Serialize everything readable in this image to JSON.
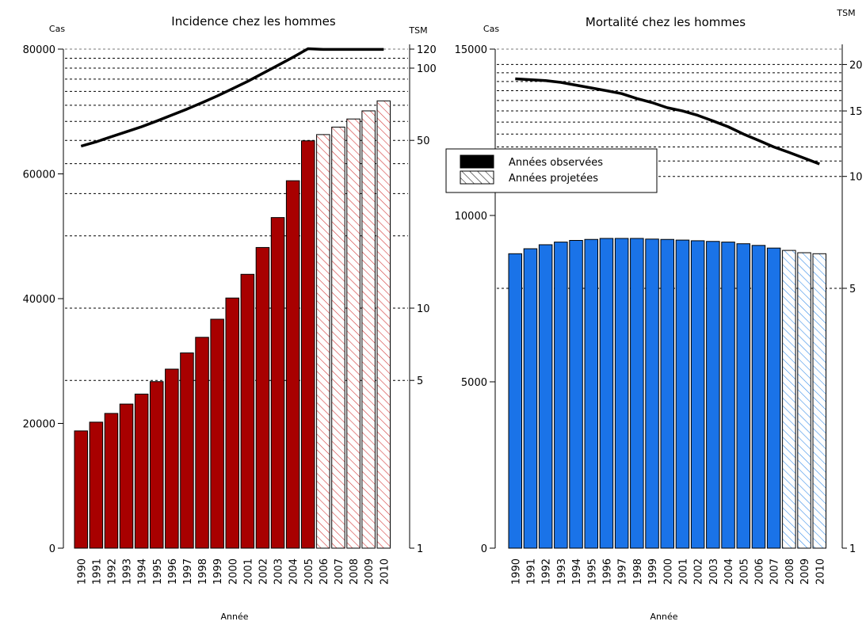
{
  "chart_data": [
    {
      "type": "bar",
      "title": "Incidence chez les hommes",
      "xlabel": "Année",
      "ylabel": "Cas",
      "y2label": "TSM",
      "ylim": [
        0,
        80000
      ],
      "yticks": [
        "0",
        "20000",
        "40000",
        "60000",
        "80000"
      ],
      "yticks_values": [
        0,
        20000,
        40000,
        60000,
        80000
      ],
      "y2_scale": "log",
      "y2lim": [
        1,
        120
      ],
      "y2ticks": [
        "1",
        "5",
        "10",
        "50",
        "100",
        "120"
      ],
      "y2ticks_values": [
        1,
        5,
        10,
        50,
        100,
        120
      ],
      "y2_gridlines": [
        5,
        10,
        20,
        30,
        40,
        50,
        60,
        70,
        80,
        90,
        100,
        110,
        120
      ],
      "categories": [
        "1990",
        "1991",
        "1992",
        "1993",
        "1994",
        "1995",
        "1996",
        "1997",
        "1998",
        "1999",
        "2000",
        "2001",
        "2002",
        "2003",
        "2004",
        "2005",
        "2006",
        "2007",
        "2008",
        "2009",
        "2010"
      ],
      "bar_color": "#a80000",
      "projected_from": "2006",
      "series": [
        {
          "name": "Cas",
          "values": [
            18800,
            20200,
            21600,
            23100,
            24700,
            26700,
            28700,
            31300,
            33800,
            36700,
            40100,
            43900,
            48200,
            53000,
            58900,
            65300,
            66300,
            67500,
            68800,
            70100,
            71700
          ]
        },
        {
          "name": "TSM",
          "axis": "y2",
          "values": [
            47.3,
            49.3,
            51.8,
            54.3,
            57.0,
            60.2,
            63.7,
            67.5,
            71.8,
            76.5,
            82.0,
            88.0,
            95.0,
            102.6,
            111.0,
            120.5,
            119.6,
            119.6,
            119.6,
            119.6,
            119.6
          ]
        }
      ]
    },
    {
      "type": "bar",
      "title": "Mortalité chez les hommes",
      "xlabel": "Année",
      "ylabel": "Cas",
      "y2label": "TSM",
      "ylim": [
        0,
        15000
      ],
      "yticks": [
        "0",
        "5000",
        "10000",
        "15000"
      ],
      "yticks_values": [
        0,
        5000,
        10000,
        15000
      ],
      "y2_scale": "log",
      "y2lim": [
        1,
        22
      ],
      "y2ticks": [
        "1",
        "5",
        "10",
        "15",
        "20"
      ],
      "y2ticks_values": [
        1,
        5,
        10,
        15,
        20
      ],
      "y2_gridlines": [
        5,
        10,
        11,
        12,
        13,
        14,
        15,
        16,
        17,
        18,
        19,
        20
      ],
      "categories": [
        "1990",
        "1991",
        "1992",
        "1993",
        "1994",
        "1995",
        "1996",
        "1997",
        "1998",
        "1999",
        "2000",
        "2001",
        "2002",
        "2003",
        "2004",
        "2005",
        "2006",
        "2007",
        "2008",
        "2009",
        "2010"
      ],
      "bar_color": "#1a73e8",
      "projected_from": "2008",
      "series": [
        {
          "name": "Cas",
          "values": [
            8850,
            9000,
            9120,
            9200,
            9250,
            9280,
            9310,
            9310,
            9310,
            9290,
            9280,
            9260,
            9240,
            9220,
            9200,
            9150,
            9100,
            9020,
            8950,
            8880,
            8850
          ]
        },
        {
          "name": "TSM",
          "axis": "y2",
          "values": [
            18.3,
            18.2,
            18.1,
            17.9,
            17.6,
            17.3,
            17.0,
            16.7,
            16.2,
            15.8,
            15.3,
            15.0,
            14.6,
            14.1,
            13.6,
            13.0,
            12.5,
            12.0,
            11.6,
            11.2,
            10.8
          ]
        }
      ]
    }
  ],
  "legend": {
    "observed": "Années observées",
    "projected": "Années projetées",
    "placement": "center"
  }
}
